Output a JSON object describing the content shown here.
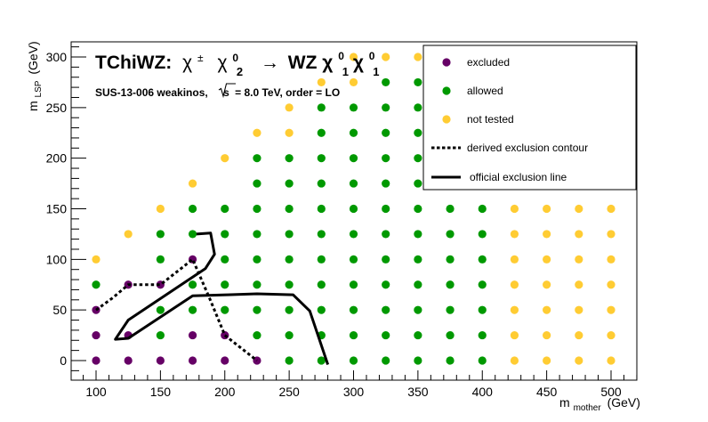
{
  "chart_data": {
    "type": "scatter",
    "title_main": "TChiWZ:",
    "title_chi_pm": "χ",
    "title_chi_pm_sup": "±",
    "title_chi0": "χ",
    "title_chi0_sup": "0",
    "title_chi0_sub": "2",
    "title_arrow": "→",
    "title_wz": "WZ",
    "title_lsp1": "χ",
    "title_lsp1_sup": "0",
    "title_lsp1_sub": "1",
    "title_lsp2": "χ",
    "title_lsp2_sup": "0",
    "title_lsp2_sub": "1",
    "subtitle_prefix": "SUS-13-006  weakinos,",
    "subtitle_sqrt_s": "s",
    "subtitle_energy": "=  8.0 TeV, order =  LO",
    "xlabel_main": "m",
    "xlabel_sub": "mother",
    "xlabel_unit": "(GeV)",
    "ylabel_main": "m",
    "ylabel_sub": "LSP",
    "ylabel_unit": "(GeV)",
    "xlim": [
      80,
      520
    ],
    "ylim": [
      -15,
      315
    ],
    "x_ticks": [
      100,
      150,
      200,
      250,
      300,
      350,
      400,
      450,
      500
    ],
    "y_ticks": [
      0,
      50,
      100,
      150,
      200,
      250,
      300
    ],
    "legend_position": "top-right",
    "legend": [
      {
        "label": "excluded",
        "kind": "marker",
        "color": "#660066"
      },
      {
        "label": "allowed",
        "kind": "marker",
        "color": "#009900"
      },
      {
        "label": "not tested",
        "kind": "marker",
        "color": "#ffcc33"
      },
      {
        "label": "derived exclusion contour",
        "kind": "dotted-line",
        "color": "#000000"
      },
      {
        "label": "official exclusion line",
        "kind": "solid-line",
        "color": "#000000"
      }
    ],
    "colors": {
      "excluded": "#660066",
      "allowed": "#009900",
      "not_tested": "#ffcc33"
    },
    "series": [
      {
        "name": "excluded",
        "points": [
          [
            100,
            0
          ],
          [
            125,
            0
          ],
          [
            150,
            0
          ],
          [
            175,
            0
          ],
          [
            200,
            0
          ],
          [
            225,
            0
          ],
          [
            100,
            25
          ],
          [
            125,
            25
          ],
          [
            175,
            25
          ],
          [
            200,
            25
          ],
          [
            100,
            50
          ],
          [
            125,
            75
          ],
          [
            150,
            75
          ],
          [
            175,
            100
          ]
        ]
      },
      {
        "name": "allowed",
        "points": [
          [
            250,
            0
          ],
          [
            275,
            0
          ],
          [
            300,
            0
          ],
          [
            325,
            0
          ],
          [
            350,
            0
          ],
          [
            375,
            0
          ],
          [
            400,
            0
          ],
          [
            150,
            25
          ],
          [
            225,
            25
          ],
          [
            250,
            25
          ],
          [
            275,
            25
          ],
          [
            300,
            25
          ],
          [
            325,
            25
          ],
          [
            350,
            25
          ],
          [
            375,
            25
          ],
          [
            400,
            25
          ],
          [
            150,
            50
          ],
          [
            175,
            50
          ],
          [
            200,
            50
          ],
          [
            225,
            50
          ],
          [
            250,
            50
          ],
          [
            275,
            50
          ],
          [
            300,
            50
          ],
          [
            325,
            50
          ],
          [
            350,
            50
          ],
          [
            375,
            50
          ],
          [
            400,
            50
          ],
          [
            100,
            75
          ],
          [
            175,
            75
          ],
          [
            200,
            75
          ],
          [
            225,
            75
          ],
          [
            250,
            75
          ],
          [
            275,
            75
          ],
          [
            300,
            75
          ],
          [
            325,
            75
          ],
          [
            350,
            75
          ],
          [
            375,
            75
          ],
          [
            400,
            75
          ],
          [
            150,
            100
          ],
          [
            200,
            100
          ],
          [
            225,
            100
          ],
          [
            250,
            100
          ],
          [
            275,
            100
          ],
          [
            300,
            100
          ],
          [
            325,
            100
          ],
          [
            350,
            100
          ],
          [
            375,
            100
          ],
          [
            400,
            100
          ],
          [
            150,
            125
          ],
          [
            175,
            125
          ],
          [
            200,
            125
          ],
          [
            225,
            125
          ],
          [
            250,
            125
          ],
          [
            275,
            125
          ],
          [
            300,
            125
          ],
          [
            325,
            125
          ],
          [
            350,
            125
          ],
          [
            375,
            125
          ],
          [
            400,
            125
          ],
          [
            175,
            150
          ],
          [
            200,
            150
          ],
          [
            225,
            150
          ],
          [
            250,
            150
          ],
          [
            275,
            150
          ],
          [
            300,
            150
          ],
          [
            325,
            150
          ],
          [
            350,
            150
          ],
          [
            375,
            150
          ],
          [
            400,
            150
          ],
          [
            225,
            175
          ],
          [
            250,
            175
          ],
          [
            275,
            175
          ],
          [
            300,
            175
          ],
          [
            325,
            175
          ],
          [
            350,
            175
          ],
          [
            375,
            175
          ],
          [
            225,
            200
          ],
          [
            250,
            200
          ],
          [
            275,
            200
          ],
          [
            300,
            200
          ],
          [
            325,
            200
          ],
          [
            350,
            200
          ],
          [
            375,
            200
          ],
          [
            275,
            225
          ],
          [
            300,
            225
          ],
          [
            325,
            225
          ],
          [
            350,
            225
          ],
          [
            375,
            225
          ],
          [
            275,
            250
          ],
          [
            300,
            250
          ],
          [
            325,
            250
          ],
          [
            350,
            250
          ],
          [
            375,
            250
          ],
          [
            325,
            275
          ],
          [
            350,
            275
          ],
          [
            375,
            275
          ]
        ]
      },
      {
        "name": "not tested",
        "points": [
          [
            425,
            0
          ],
          [
            450,
            0
          ],
          [
            475,
            0
          ],
          [
            500,
            0
          ],
          [
            425,
            25
          ],
          [
            450,
            25
          ],
          [
            475,
            25
          ],
          [
            500,
            25
          ],
          [
            425,
            50
          ],
          [
            450,
            50
          ],
          [
            475,
            50
          ],
          [
            500,
            50
          ],
          [
            425,
            75
          ],
          [
            450,
            75
          ],
          [
            475,
            75
          ],
          [
            500,
            75
          ],
          [
            100,
            100
          ],
          [
            425,
            100
          ],
          [
            450,
            100
          ],
          [
            475,
            100
          ],
          [
            500,
            100
          ],
          [
            125,
            125
          ],
          [
            425,
            125
          ],
          [
            450,
            125
          ],
          [
            475,
            125
          ],
          [
            500,
            125
          ],
          [
            150,
            150
          ],
          [
            425,
            150
          ],
          [
            450,
            150
          ],
          [
            475,
            150
          ],
          [
            500,
            150
          ],
          [
            175,
            175
          ],
          [
            200,
            200
          ],
          [
            225,
            225
          ],
          [
            250,
            225
          ],
          [
            250,
            250
          ],
          [
            275,
            275
          ],
          [
            300,
            275
          ],
          [
            300,
            300
          ],
          [
            325,
            300
          ],
          [
            350,
            300
          ],
          [
            375,
            300
          ]
        ]
      }
    ],
    "lines": [
      {
        "name": "derived exclusion contour",
        "style": "dotted",
        "points": [
          [
            100,
            50
          ],
          [
            113,
            62
          ],
          [
            125,
            75
          ],
          [
            137,
            75
          ],
          [
            150,
            75
          ],
          [
            175,
            100
          ],
          [
            188,
            62
          ],
          [
            200,
            25
          ],
          [
            213,
            12
          ],
          [
            225,
            0
          ]
        ]
      },
      {
        "name": "official exclusion line",
        "style": "solid",
        "points": [
          [
            280,
            -4
          ],
          [
            266,
            49
          ],
          [
            253,
            65
          ],
          [
            225,
            66
          ],
          [
            202,
            65
          ],
          [
            175,
            64
          ],
          [
            125,
            22
          ],
          [
            115,
            21
          ],
          [
            125,
            40
          ],
          [
            185,
            91
          ],
          [
            192,
            105
          ],
          [
            189,
            126
          ],
          [
            178,
            125
          ]
        ]
      }
    ]
  }
}
